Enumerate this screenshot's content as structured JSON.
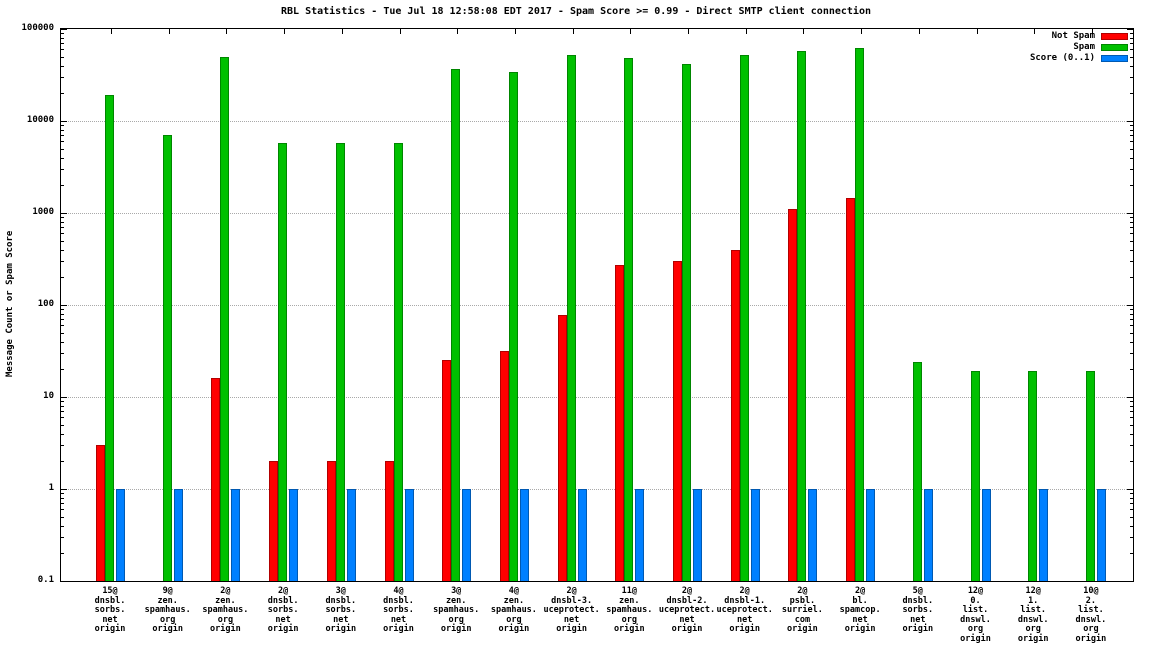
{
  "chart_data": {
    "type": "bar",
    "scale": "log",
    "title": "RBL Statistics - Tue Jul 18 12:58:08 EDT 2017 - Spam Score >= 0.99 - Direct SMTP client connection",
    "ylabel": "Message Count or Spam Score",
    "ylim": [
      0.1,
      100000
    ],
    "yticks": [
      0.1,
      1,
      10,
      100,
      1000,
      10000,
      100000
    ],
    "ytick_labels": [
      "0.1",
      "1",
      "10",
      "100",
      "1000",
      "10000",
      "100000"
    ],
    "grid": "dotted horizontal lines at each decade",
    "legend_position": "top-right",
    "categories": [
      "15@\ndnsbl.\nsorbs.\nnet\norigin",
      "9@\nzen.\nspamhaus.\norg\norigin",
      "2@\nzen.\nspamhaus.\norg\norigin",
      "2@\ndnsbl.\nsorbs.\nnet\norigin",
      "3@\ndnsbl.\nsorbs.\nnet\norigin",
      "4@\ndnsbl.\nsorbs.\nnet\norigin",
      "3@\nzen.\nspamhaus.\norg\norigin",
      "4@\nzen.\nspamhaus.\norg\norigin",
      "2@\ndnsbl-3.\nuceprotect.\nnet\norigin",
      "11@\nzen.\nspamhaus.\norg\norigin",
      "2@\ndnsbl-2.\nuceprotect.\nnet\norigin",
      "2@\ndnsbl-1.\nuceprotect.\nnet\norigin",
      "2@\npsbl.\nsurriel.\ncom\norigin",
      "2@\nbl.\nspamcop.\nnet\norigin",
      "5@\ndnsbl.\nsorbs.\nnet\norigin",
      "12@\n0.\nlist.\ndnswl.\norg\norigin",
      "12@\n1.\nlist.\ndnswl.\norg\norigin",
      "10@\n2.\nlist.\ndnswl.\norg\norigin"
    ],
    "series": [
      {
        "name": "Not Spam",
        "color": "#ff0000",
        "values": [
          3,
          null,
          16,
          2,
          2,
          2,
          25,
          32,
          78,
          270,
          300,
          400,
          1100,
          1450,
          null,
          null,
          null,
          null
        ]
      },
      {
        "name": "Spam",
        "color": "#00c000",
        "values": [
          19000,
          7000,
          50000,
          5700,
          5700,
          5700,
          37000,
          34000,
          52000,
          48000,
          42000,
          52000,
          58000,
          62000,
          24,
          19,
          19,
          19
        ]
      },
      {
        "name": "Score (0..1)",
        "color": "#0080ff",
        "values": [
          1,
          1,
          1,
          1,
          1,
          1,
          1,
          1,
          1,
          1,
          1,
          1,
          1,
          1,
          1,
          1,
          1,
          1
        ]
      }
    ]
  }
}
